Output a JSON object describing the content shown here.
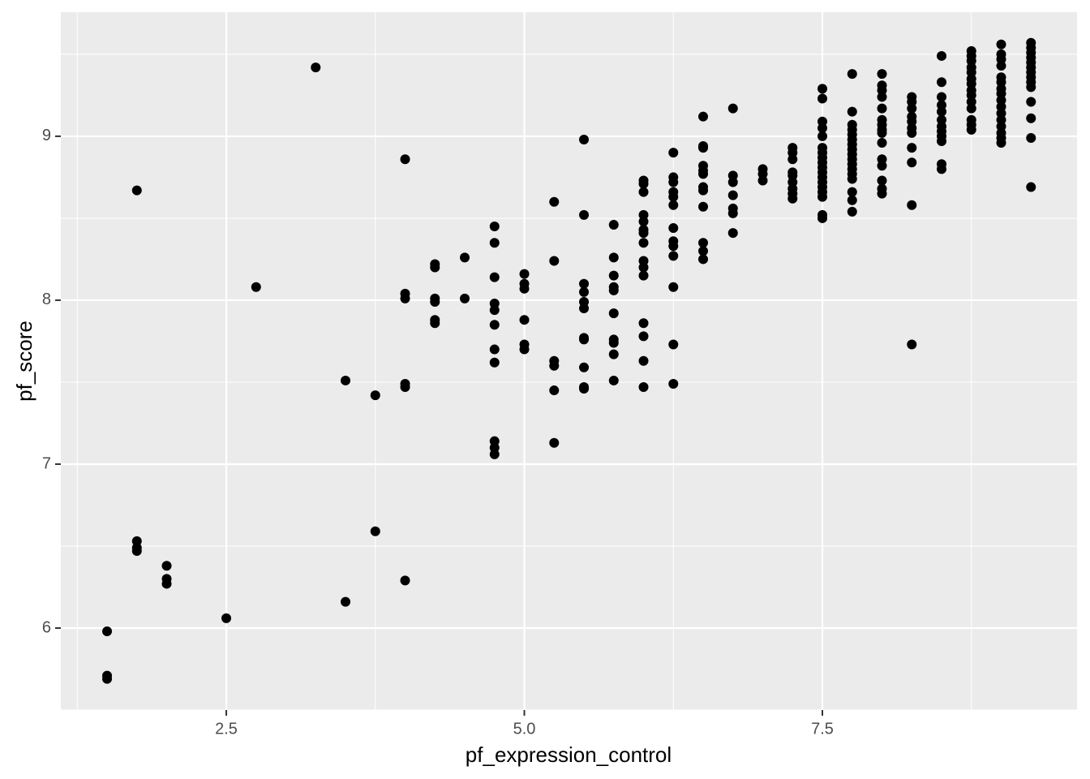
{
  "chart_data": {
    "type": "scatter",
    "x_label": "pf_expression_control",
    "y_label": "pf_score",
    "color": "#000000",
    "grid": true,
    "xlim": [
      1.112,
      9.636
    ],
    "ylim": [
      5.5,
      9.757
    ],
    "xticks": [
      2.5,
      {
        "value": 5,
        "label": "5.0"
      },
      7.5
    ],
    "yticks": [
      6,
      7,
      8,
      9
    ],
    "x": [
      1.5,
      1.5,
      1.5,
      1.75,
      1.75,
      1.75,
      1.75,
      2,
      2,
      2,
      2.5,
      2.75,
      3.25,
      3.5,
      3.5,
      3.75,
      3.75,
      4,
      4,
      4,
      4,
      4,
      4,
      4.25,
      4.25,
      4.25,
      4.25,
      4.25,
      4.25,
      4.5,
      4.5,
      4.75,
      4.75,
      4.75,
      4.75,
      4.75,
      4.75,
      4.75,
      4.75,
      4.75,
      4.75,
      4.75,
      5,
      5,
      5,
      5,
      5,
      5,
      5.25,
      5.25,
      5.25,
      5.25,
      5.25,
      5.25,
      5.5,
      5.5,
      5.5,
      5.5,
      5.5,
      5.5,
      5.5,
      5.5,
      5.5,
      5.5,
      5.5,
      5.75,
      5.75,
      5.75,
      5.75,
      5.75,
      5.75,
      5.75,
      5.75,
      5.75,
      5.75,
      6,
      6,
      6,
      6,
      6,
      6,
      6,
      6,
      6,
      6,
      6,
      6,
      6,
      6,
      6,
      6.25,
      6.25,
      6.25,
      6.25,
      6.25,
      6.25,
      6.25,
      6.25,
      6.25,
      6.25,
      6.25,
      6.25,
      6.25,
      6.5,
      6.5,
      6.5,
      6.5,
      6.5,
      6.5,
      6.5,
      6.5,
      6.5,
      6.5,
      6.5,
      6.5,
      6.75,
      6.75,
      6.75,
      6.75,
      6.75,
      6.75,
      6.75,
      7,
      7,
      7,
      7.25,
      7.25,
      7.25,
      7.25,
      7.25,
      7.25,
      7.25,
      7.25,
      7.25,
      7.5,
      7.5,
      7.5,
      7.5,
      7.5,
      7.5,
      7.5,
      7.5,
      7.5,
      7.5,
      7.5,
      7.5,
      7.5,
      7.5,
      7.5,
      7.5,
      7.5,
      7.5,
      7.75,
      7.75,
      7.75,
      7.75,
      7.75,
      7.75,
      7.75,
      7.75,
      7.75,
      7.75,
      7.75,
      7.75,
      7.75,
      7.75,
      7.75,
      7.75,
      7.75,
      8,
      8,
      8,
      8,
      8,
      8,
      8,
      8,
      8,
      8,
      8,
      8,
      8,
      8,
      8,
      8.25,
      8.25,
      8.25,
      8.25,
      8.25,
      8.25,
      8.25,
      8.25,
      8.25,
      8.25,
      8.25,
      8.5,
      8.5,
      8.5,
      8.5,
      8.5,
      8.5,
      8.5,
      8.5,
      8.5,
      8.5,
      8.5,
      8.5,
      8.75,
      8.75,
      8.75,
      8.75,
      8.75,
      8.75,
      8.75,
      8.75,
      8.75,
      8.75,
      8.75,
      8.75,
      8.75,
      8.75,
      9,
      9,
      9,
      9,
      9,
      9,
      9,
      9,
      9,
      9,
      9,
      9,
      9,
      9,
      9,
      9,
      9.25,
      9.25,
      9.25,
      9.25,
      9.25,
      9.25,
      9.25,
      9.25,
      9.25,
      9.25,
      9.25,
      9.25,
      9.25,
      9.25
    ],
    "values": [
      5.98,
      5.71,
      5.69,
      8.67,
      6.53,
      6.49,
      6.47,
      6.38,
      6.3,
      6.27,
      6.06,
      8.08,
      9.42,
      7.51,
      6.16,
      7.42,
      6.59,
      8.86,
      8.04,
      8.01,
      7.49,
      7.47,
      6.29,
      8.22,
      8.2,
      8.01,
      7.99,
      7.88,
      7.86,
      8.26,
      8.01,
      8.45,
      8.35,
      8.14,
      7.98,
      7.94,
      7.85,
      7.7,
      7.62,
      7.14,
      7.1,
      7.06,
      8.16,
      8.1,
      8.07,
      7.88,
      7.73,
      7.7,
      8.6,
      8.24,
      7.63,
      7.6,
      7.45,
      7.13,
      8.98,
      8.52,
      8.1,
      8.05,
      7.99,
      7.95,
      7.77,
      7.76,
      7.59,
      7.47,
      7.46,
      8.46,
      8.26,
      8.15,
      8.08,
      8.06,
      7.92,
      7.76,
      7.74,
      7.67,
      7.51,
      8.73,
      8.71,
      8.66,
      8.52,
      8.48,
      8.43,
      8.41,
      8.35,
      8.24,
      8.2,
      8.15,
      7.86,
      7.78,
      7.63,
      7.47,
      8.9,
      8.75,
      8.72,
      8.66,
      8.63,
      8.58,
      8.44,
      8.36,
      8.33,
      8.27,
      8.08,
      7.73,
      7.49,
      9.12,
      8.94,
      8.93,
      8.82,
      8.79,
      8.77,
      8.69,
      8.67,
      8.57,
      8.35,
      8.3,
      8.25,
      9.17,
      8.76,
      8.72,
      8.64,
      8.56,
      8.53,
      8.41,
      8.8,
      8.77,
      8.73,
      8.93,
      8.9,
      8.86,
      8.78,
      8.76,
      8.72,
      8.68,
      8.65,
      8.62,
      9.29,
      9.23,
      9.09,
      9.05,
      9.0,
      8.93,
      8.9,
      8.87,
      8.84,
      8.81,
      8.78,
      8.75,
      8.72,
      8.69,
      8.66,
      8.63,
      8.52,
      8.5,
      9.38,
      9.15,
      9.07,
      9.04,
      9.01,
      8.98,
      8.95,
      8.92,
      8.89,
      8.86,
      8.83,
      8.8,
      8.77,
      8.74,
      8.66,
      8.61,
      8.54,
      9.38,
      9.31,
      9.28,
      9.24,
      9.17,
      9.1,
      9.07,
      9.04,
      9.02,
      8.96,
      8.86,
      8.82,
      8.73,
      8.68,
      8.65,
      9.24,
      9.21,
      9.17,
      9.12,
      9.09,
      9.05,
      9.02,
      8.93,
      8.84,
      8.58,
      7.73,
      9.49,
      9.33,
      9.24,
      9.19,
      9.15,
      9.1,
      9.06,
      9.03,
      9.0,
      8.97,
      8.83,
      8.8,
      9.52,
      9.49,
      9.46,
      9.42,
      9.39,
      9.35,
      9.32,
      9.28,
      9.25,
      9.21,
      9.17,
      9.1,
      9.07,
      9.04,
      9.56,
      9.5,
      9.47,
      9.43,
      9.36,
      9.33,
      9.29,
      9.26,
      9.22,
      9.18,
      9.14,
      9.1,
      9.06,
      9.02,
      8.99,
      8.96,
      9.57,
      9.54,
      9.51,
      9.48,
      9.45,
      9.42,
      9.39,
      9.36,
      9.33,
      9.3,
      9.21,
      9.11,
      8.99,
      8.69
    ]
  }
}
